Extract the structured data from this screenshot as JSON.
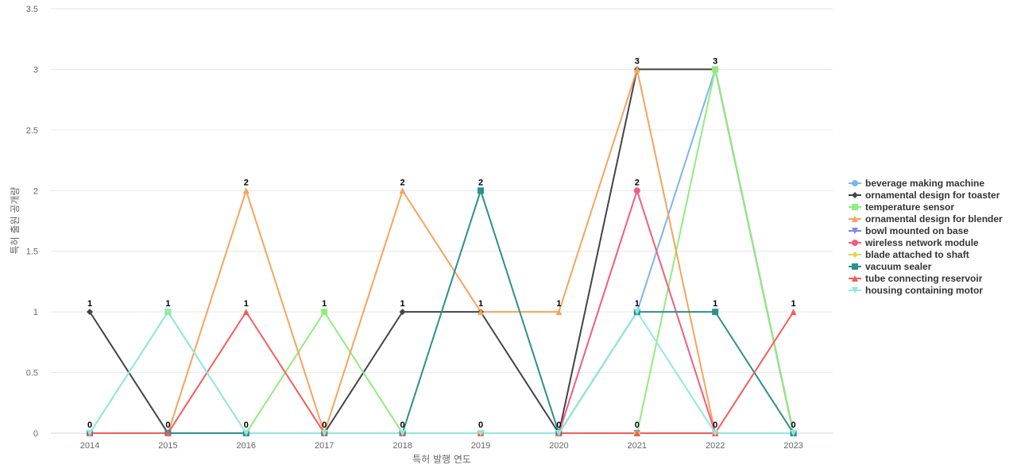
{
  "chart_data": {
    "type": "line",
    "title": "",
    "xlabel": "특허 발행 연도",
    "ylabel": "특허 출원 공개량",
    "x": [
      "2014",
      "2015",
      "2016",
      "2017",
      "2018",
      "2019",
      "2020",
      "2021",
      "2022",
      "2023"
    ],
    "ylim": [
      0,
      3.5
    ],
    "yticks": [
      "0",
      "0.5",
      "1",
      "1.5",
      "2",
      "2.5",
      "3",
      "3.5"
    ],
    "grid": true,
    "legend_position": "right",
    "series": [
      {
        "name": "beverage making machine",
        "color": "#7cb5ec",
        "marker": "circle",
        "values": [
          0,
          0,
          0,
          0,
          0,
          0,
          0,
          1,
          3,
          0
        ]
      },
      {
        "name": "ornamental design for toaster",
        "color": "#434348",
        "marker": "diamond",
        "values": [
          1,
          0,
          0,
          0,
          1,
          1,
          0,
          3,
          3,
          0
        ]
      },
      {
        "name": "temperature sensor",
        "color": "#90ed7d",
        "marker": "square",
        "values": [
          0,
          1,
          0,
          1,
          0,
          0,
          0,
          0,
          3,
          0
        ]
      },
      {
        "name": "ornamental design for blender",
        "color": "#f7a35c",
        "marker": "triangle",
        "values": [
          0,
          0,
          2,
          0,
          2,
          1,
          1,
          3,
          0,
          0
        ]
      },
      {
        "name": "bowl mounted on base",
        "color": "#8085e9",
        "marker": "triangle-down",
        "values": [
          0,
          0,
          0,
          0,
          0,
          0,
          0,
          0,
          0,
          0
        ]
      },
      {
        "name": "wireless network module",
        "color": "#f15c80",
        "marker": "circle",
        "values": [
          0,
          0,
          0,
          0,
          0,
          0,
          0,
          2,
          0,
          0
        ]
      },
      {
        "name": "blade attached to shaft",
        "color": "#e4d354",
        "marker": "diamond",
        "values": [
          0,
          0,
          0,
          0,
          0,
          0,
          0,
          0,
          0,
          0
        ]
      },
      {
        "name": "vacuum sealer",
        "color": "#2b908f",
        "marker": "square",
        "values": [
          0,
          0,
          0,
          0,
          0,
          2,
          0,
          1,
          1,
          0
        ]
      },
      {
        "name": "tube connecting reservoir",
        "color": "#f45b5b",
        "marker": "triangle",
        "values": [
          0,
          0,
          1,
          0,
          0,
          0,
          0,
          0,
          0,
          1
        ]
      },
      {
        "name": "housing containing motor",
        "color": "#91e8e1",
        "marker": "triangle-down",
        "values": [
          0,
          1,
          0,
          0,
          0,
          0,
          0,
          1,
          0,
          0
        ]
      }
    ],
    "data_labels": [
      {
        "x": "2014",
        "values": [
          "1",
          "0"
        ]
      },
      {
        "x": "2015",
        "values": [
          "1",
          "0"
        ]
      },
      {
        "x": "2016",
        "values": [
          "2",
          "1",
          "0"
        ]
      },
      {
        "x": "2017",
        "values": [
          "1",
          "0"
        ]
      },
      {
        "x": "2018",
        "values": [
          "2",
          "1",
          "0"
        ]
      },
      {
        "x": "2019",
        "values": [
          "2",
          "1",
          "0"
        ]
      },
      {
        "x": "2020",
        "values": [
          "1",
          "0"
        ]
      },
      {
        "x": "2021",
        "values": [
          "3",
          "2",
          "1",
          "0"
        ]
      },
      {
        "x": "2022",
        "values": [
          "3",
          "1",
          "0"
        ]
      },
      {
        "x": "2023",
        "values": [
          "1",
          "0"
        ]
      }
    ]
  }
}
